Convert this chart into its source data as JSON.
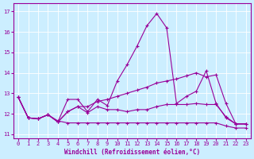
{
  "xlabel": "Windchill (Refroidissement éolien,°C)",
  "background_color": "#cceeff",
  "line_color": "#990099",
  "xlim": [
    -0.5,
    23.5
  ],
  "ylim": [
    10.8,
    17.4
  ],
  "yticks": [
    11,
    12,
    13,
    14,
    15,
    16,
    17
  ],
  "xticks": [
    0,
    1,
    2,
    3,
    4,
    5,
    6,
    7,
    8,
    9,
    10,
    11,
    12,
    13,
    14,
    15,
    16,
    17,
    18,
    19,
    20,
    21,
    22,
    23
  ],
  "curves": [
    [
      12.8,
      11.8,
      11.75,
      11.95,
      11.6,
      12.7,
      12.7,
      12.1,
      12.7,
      12.4,
      13.6,
      14.4,
      15.3,
      16.3,
      16.9,
      16.2,
      12.5,
      12.85,
      13.1,
      14.1,
      12.5,
      11.8,
      11.5,
      11.5
    ],
    [
      12.8,
      11.8,
      11.75,
      11.95,
      11.6,
      12.1,
      12.35,
      12.35,
      12.6,
      12.7,
      12.85,
      13.0,
      13.15,
      13.3,
      13.5,
      13.6,
      13.7,
      13.85,
      14.0,
      13.8,
      13.9,
      12.5,
      11.5,
      11.5
    ],
    [
      12.8,
      11.8,
      11.75,
      11.95,
      11.6,
      12.1,
      12.35,
      12.05,
      12.35,
      12.2,
      12.2,
      12.1,
      12.2,
      12.2,
      12.35,
      12.45,
      12.45,
      12.45,
      12.5,
      12.45,
      12.45,
      11.85,
      11.5,
      11.5
    ],
    [
      12.8,
      11.8,
      11.75,
      11.95,
      11.65,
      11.55,
      11.55,
      11.55,
      11.55,
      11.55,
      11.55,
      11.55,
      11.55,
      11.55,
      11.55,
      11.55,
      11.55,
      11.55,
      11.55,
      11.55,
      11.55,
      11.4,
      11.3,
      11.3
    ]
  ]
}
